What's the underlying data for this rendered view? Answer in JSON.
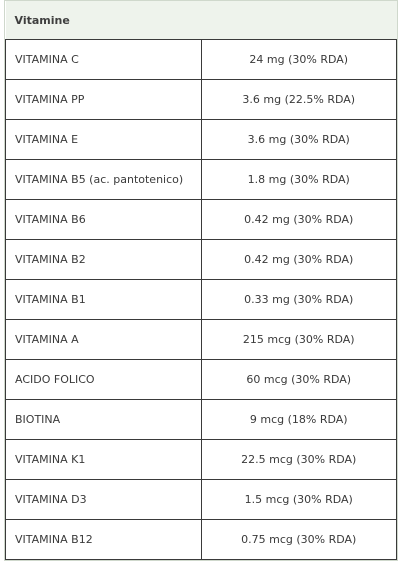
{
  "table": {
    "header": "Vitamine",
    "rows": [
      {
        "name": "VITAMINA C",
        "value": "24 mg (30% RDA)"
      },
      {
        "name": "VITAMINA PP",
        "value": "3.6 mg (22.5% RDA)"
      },
      {
        "name": "VITAMINA E",
        "value": "3.6 mg (30% RDA)"
      },
      {
        "name": "VITAMINA B5 (ac. pantotenico)",
        "value": "1.8 mg (30% RDA)"
      },
      {
        "name": "VITAMINA B6",
        "value": "0.42 mg (30% RDA)"
      },
      {
        "name": "VITAMINA B2",
        "value": "0.42 mg (30% RDA)"
      },
      {
        "name": "VITAMINA B1",
        "value": "0.33 mg (30% RDA)"
      },
      {
        "name": "VITAMINA A",
        "value": "215 mcg (30% RDA)"
      },
      {
        "name": "ACIDO FOLICO",
        "value": "60 mcg (30% RDA)"
      },
      {
        "name": "BIOTINA",
        "value": "9 mcg (18% RDA)"
      },
      {
        "name": "VITAMINA K1",
        "value": "22.5 mcg (30% RDA)"
      },
      {
        "name": "VITAMINA D3",
        "value": "1.5 mcg (30% RDA)"
      },
      {
        "name": "VITAMINA B12",
        "value": "0.75 mcg (30% RDA)"
      }
    ]
  }
}
